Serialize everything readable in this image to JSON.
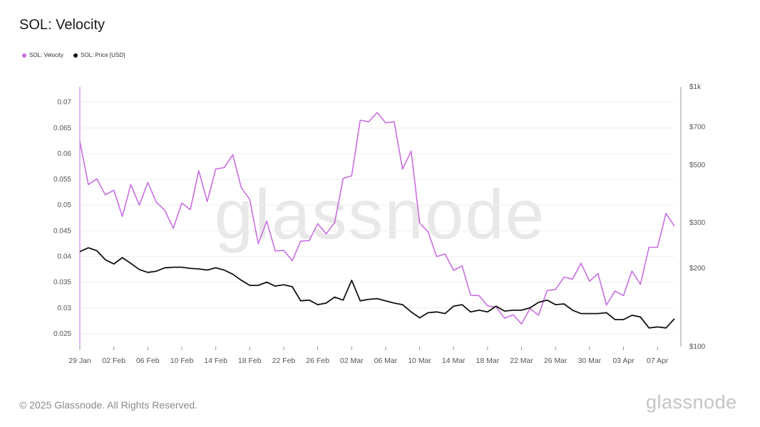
{
  "title": "SOL: Velocity",
  "footer": "© 2025 Glassnode. All Rights Reserved.",
  "brand": "glassnode",
  "watermark": "glassnode",
  "colors": {
    "velocity": "#c86ee0",
    "price": "#111111",
    "grid": "#efefef",
    "axis": "#9a9a9a"
  },
  "chart_data": {
    "type": "line",
    "x_ticks": [
      "29 Jan",
      "02 Feb",
      "06 Feb",
      "10 Feb",
      "14 Feb",
      "18 Feb",
      "22 Feb",
      "26 Feb",
      "02 Mar",
      "06 Mar",
      "10 Mar",
      "14 Mar",
      "18 Mar",
      "22 Mar",
      "26 Mar",
      "30 Mar",
      "03 Apr",
      "07 Apr"
    ],
    "x_tick_index": [
      0,
      4,
      8,
      12,
      16,
      20,
      24,
      28,
      32,
      36,
      40,
      44,
      48,
      52,
      56,
      60,
      64,
      68
    ],
    "y_left": {
      "ticks": [
        "0.025",
        "0.03",
        "0.035",
        "0.04",
        "0.045",
        "0.05",
        "0.055",
        "0.06",
        "0.065",
        "0.07"
      ],
      "range": [
        0.0225,
        0.073
      ]
    },
    "y_right": {
      "scale": "log",
      "ticks": [
        "$100",
        "$200",
        "$300",
        "$500",
        "$700",
        "$1k"
      ],
      "values": [
        100,
        200,
        300,
        500,
        700,
        1000
      ],
      "range": [
        100,
        1000
      ]
    },
    "series": [
      {
        "name": "SOL: Velocity",
        "axis": "left",
        "color": "#c86ee0",
        "values": [
          0.0624,
          0.054,
          0.0551,
          0.052,
          0.0529,
          0.0478,
          0.054,
          0.05,
          0.0544,
          0.0506,
          0.049,
          0.0455,
          0.0504,
          0.0491,
          0.0567,
          0.0507,
          0.057,
          0.0573,
          0.0598,
          0.0534,
          0.0511,
          0.0425,
          0.0469,
          0.0411,
          0.0412,
          0.0392,
          0.043,
          0.0431,
          0.0464,
          0.0444,
          0.0466,
          0.0552,
          0.0557,
          0.0665,
          0.0662,
          0.068,
          0.066,
          0.0662,
          0.057,
          0.0605,
          0.0465,
          0.0448,
          0.04,
          0.0405,
          0.0373,
          0.0382,
          0.0325,
          0.0324,
          0.0304,
          0.0302,
          0.028,
          0.0287,
          0.0269,
          0.0299,
          0.0286,
          0.0334,
          0.0336,
          0.036,
          0.0356,
          0.0387,
          0.0352,
          0.0367,
          0.0306,
          0.0333,
          0.0324,
          0.0372,
          0.0346,
          0.0418,
          0.0418,
          0.0484,
          0.0459
        ]
      },
      {
        "name": "SOL: Price [USD]",
        "axis": "right",
        "color": "#111111",
        "values": [
          232,
          240,
          234,
          216,
          208,
          220,
          209,
          198,
          193,
          195,
          201,
          202,
          202,
          200,
          199,
          197,
          201,
          197,
          190,
          180,
          172,
          172,
          177,
          171,
          173,
          170,
          150,
          151,
          145,
          147,
          155,
          151,
          180,
          150,
          152,
          153,
          150,
          147,
          145,
          136,
          129,
          135,
          136,
          134,
          143,
          145,
          136,
          138,
          136,
          143,
          137,
          138,
          138,
          141,
          148,
          151,
          145,
          146,
          138,
          134,
          134,
          134,
          135,
          127,
          127,
          132,
          130,
          118,
          119,
          118,
          128
        ]
      }
    ]
  }
}
